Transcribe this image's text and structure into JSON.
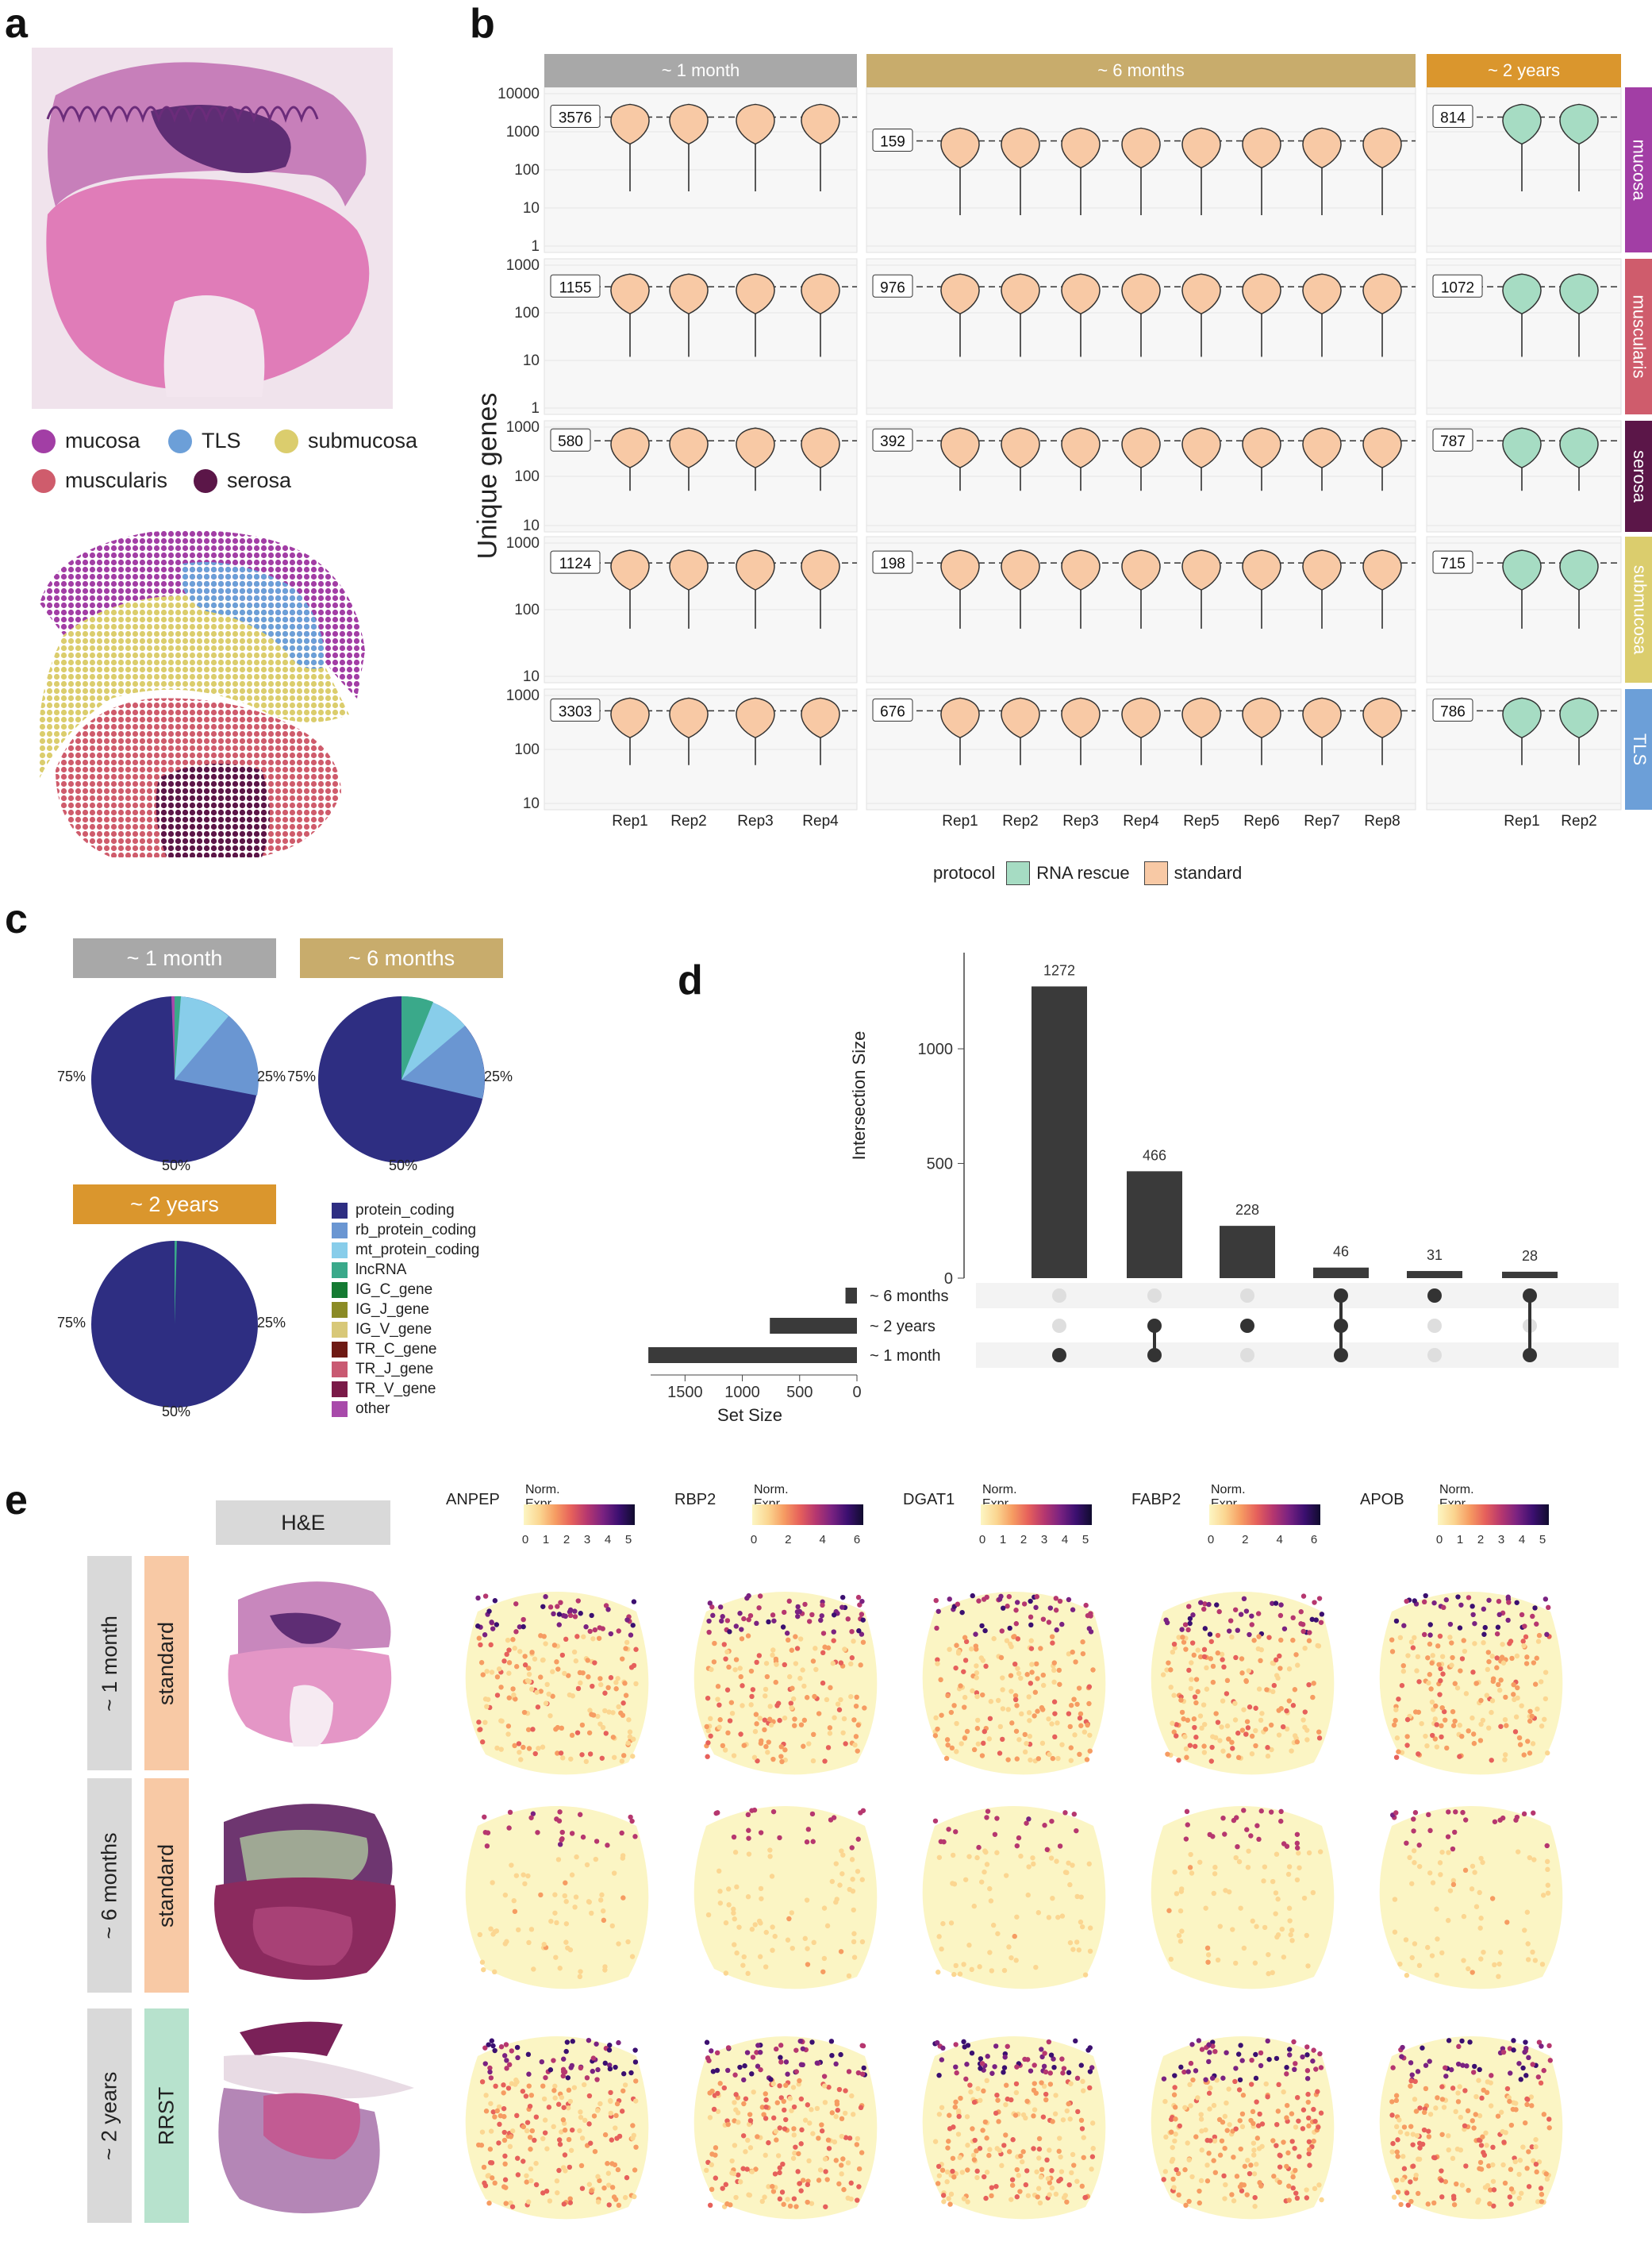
{
  "panels": {
    "a": "a",
    "b": "b",
    "c": "c",
    "d": "d",
    "e": "e"
  },
  "colors": {
    "mucosa": "#a23ea5",
    "TLS": "#6c9fd8",
    "submucosa": "#dbcd6d",
    "muscularis": "#cf5c6c",
    "serosa": "#5b1648",
    "gray_strip": "#a8a8a8",
    "tan_strip": "#c8ac6c",
    "orange_strip": "#da962d",
    "rna_rescue": "#a6dcc3",
    "standard": "#f8c9a5"
  },
  "panel_a": {
    "legend": [
      {
        "label": "mucosa",
        "color": "#a23ea5"
      },
      {
        "label": "TLS",
        "color": "#6c9fd8"
      },
      {
        "label": "submucosa",
        "color": "#dbcd6d"
      },
      {
        "label": "muscularis",
        "color": "#cf5c6c"
      },
      {
        "label": "serosa",
        "color": "#5b1648"
      }
    ]
  },
  "panel_b": {
    "facets": [
      "~ 1 month",
      "~ 6 months",
      "~ 2 years"
    ],
    "rows": [
      "mucosa",
      "muscularis",
      "serosa",
      "submucosa",
      "TLS"
    ],
    "ylabel": "Unique genes",
    "legend_title": "protocol",
    "legend_items": [
      "RNA rescue",
      "standard"
    ],
    "reps_1m": [
      "Rep1",
      "Rep2",
      "Rep3",
      "Rep4"
    ],
    "reps_6m": [
      "Rep1",
      "Rep2",
      "Rep3",
      "Rep4",
      "Rep5",
      "Rep6",
      "Rep7",
      "Rep8"
    ],
    "reps_2y": [
      "Rep1",
      "Rep2"
    ],
    "medians": {
      "mucosa": [
        "3576",
        "159",
        "814"
      ],
      "muscularis": [
        "1155",
        "976",
        "1072"
      ],
      "serosa": [
        "580",
        "392",
        "787"
      ],
      "submucosa": [
        "1124",
        "198",
        "715"
      ],
      "TLS": [
        "3303",
        "676",
        "786"
      ]
    },
    "row_ticks": {
      "mucosa": [
        "10000",
        "1000",
        "100",
        "10",
        "1"
      ],
      "muscularis": [
        "1000",
        "100",
        "10",
        "1"
      ],
      "serosa": [
        "1000",
        "100",
        "10"
      ],
      "submucosa": [
        "1000",
        "100",
        "10"
      ],
      "TLS": [
        "1000",
        "100",
        "10"
      ]
    }
  },
  "panel_c": {
    "headers": [
      "~ 1 month",
      "~ 6 months",
      "~ 2 years"
    ],
    "pct_labels": {
      "p25": "25%",
      "p50": "50%",
      "p75": "75%"
    },
    "legend": [
      {
        "label": "protein_coding",
        "color": "#2e2e82"
      },
      {
        "label": "rb_protein_coding",
        "color": "#6a96d2"
      },
      {
        "label": "mt_protein_coding",
        "color": "#88cdea"
      },
      {
        "label": "lncRNA",
        "color": "#3aa98a"
      },
      {
        "label": "IG_C_gene",
        "color": "#147a32"
      },
      {
        "label": "IG_J_gene",
        "color": "#8b8b26"
      },
      {
        "label": "IG_V_gene",
        "color": "#d8c878"
      },
      {
        "label": "TR_C_gene",
        "color": "#6e1a14"
      },
      {
        "label": "TR_J_gene",
        "color": "#c95a72"
      },
      {
        "label": "TR_V_gene",
        "color": "#7a1a48"
      },
      {
        "label": "other",
        "color": "#a84aaa"
      }
    ]
  },
  "chart_data": [
    {
      "type": "bar",
      "title": "",
      "ylabel": "Intersection Size",
      "ylim": [
        0,
        1350
      ],
      "yticks": [
        "0",
        "500",
        "1000"
      ],
      "categories": [
        "~1 month",
        "~1 month & ~2 years",
        "~2 years",
        "all three",
        "~6 months",
        "~6 months & ~1 month"
      ],
      "values": [
        1272,
        466,
        228,
        46,
        31,
        28
      ],
      "value_labels": [
        "1272",
        "466",
        "228",
        "46",
        "31",
        "28"
      ]
    },
    {
      "type": "bar",
      "title": "",
      "xlabel": "Set Size",
      "xticks": [
        "1500",
        "1000",
        "500",
        "0"
      ],
      "categories": [
        "~ 6 months",
        "~ 2 years",
        "~ 1 month"
      ],
      "values": [
        100,
        760,
        1820
      ]
    }
  ],
  "panel_e": {
    "he_label": "H&E",
    "time_labels": [
      "~ 1 month",
      "~ 6 months",
      "~ 2 years"
    ],
    "protocol_labels": [
      "standard",
      "standard",
      "RRST"
    ],
    "legend_title": "Norm. Expr.",
    "genes": [
      {
        "name": "ANPEP",
        "ticks": [
          "0",
          "1",
          "2",
          "3",
          "4",
          "5"
        ]
      },
      {
        "name": "RBP2",
        "ticks": [
          "0",
          "2",
          "4",
          "6"
        ]
      },
      {
        "name": "DGAT1",
        "ticks": [
          "0",
          "1",
          "2",
          "3",
          "4",
          "5"
        ]
      },
      {
        "name": "FABP2",
        "ticks": [
          "0",
          "2",
          "4",
          "6"
        ]
      },
      {
        "name": "APOB",
        "ticks": [
          "0",
          "1",
          "2",
          "3",
          "4",
          "5"
        ]
      }
    ]
  }
}
